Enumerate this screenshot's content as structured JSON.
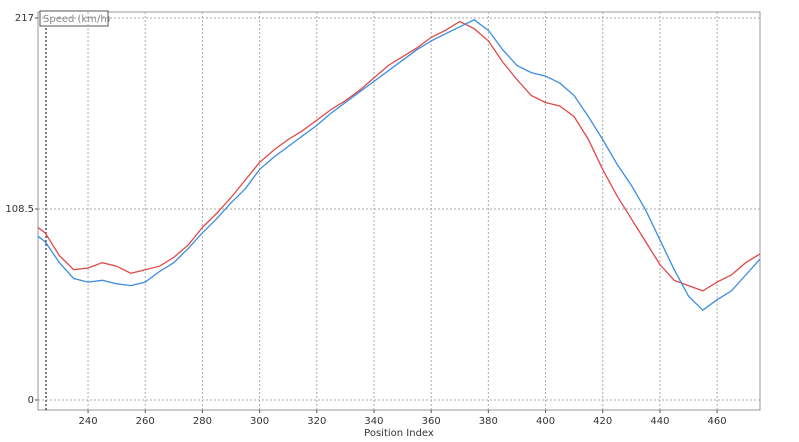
{
  "chart_data": {
    "type": "line",
    "ylabel": "Speed (km/h)",
    "xlabel": "Position Index",
    "x": [
      222.5,
      225,
      230,
      235,
      240,
      245,
      250,
      255,
      260,
      265,
      270,
      275,
      280,
      285,
      290,
      295,
      300,
      305,
      310,
      315,
      320,
      325,
      330,
      335,
      340,
      345,
      350,
      355,
      360,
      365,
      370,
      375,
      380,
      385,
      390,
      395,
      400,
      405,
      410,
      415,
      420,
      425,
      430,
      435,
      440,
      445,
      450,
      455,
      460,
      465,
      470,
      475
    ],
    "series": [
      {
        "color": "#e04848",
        "values": [
          98,
          95,
          82,
          74,
          75,
          78,
          76,
          72,
          74,
          76,
          81,
          88,
          98,
          106,
          115,
          125,
          135,
          142,
          148,
          153,
          159,
          165,
          170,
          176,
          183,
          190,
          195,
          200,
          206,
          210,
          215,
          211,
          204,
          192,
          182,
          173,
          169,
          167,
          161,
          148,
          131,
          116,
          103,
          90,
          77,
          68,
          65,
          62,
          67,
          71,
          78,
          83
        ]
      },
      {
        "color": "#3a8ee0",
        "values": [
          93,
          90,
          78,
          69,
          67,
          68,
          66,
          65,
          67,
          73,
          78,
          86,
          95,
          103,
          112,
          120,
          131,
          138,
          144,
          150,
          156,
          163,
          169,
          175,
          181,
          187,
          193,
          199,
          204,
          208,
          212,
          216,
          210,
          199,
          190,
          186,
          184,
          180,
          173,
          161,
          148,
          134,
          122,
          108,
          91,
          74,
          59,
          51,
          57,
          62,
          71,
          80
        ]
      }
    ],
    "xlim": [
      222.5,
      475
    ],
    "ylim": [
      0,
      217
    ],
    "xticks": [
      240,
      260,
      280,
      300,
      320,
      340,
      360,
      380,
      400,
      420,
      440,
      460
    ],
    "yticks": [
      0,
      108.5,
      217
    ],
    "grid": true
  }
}
